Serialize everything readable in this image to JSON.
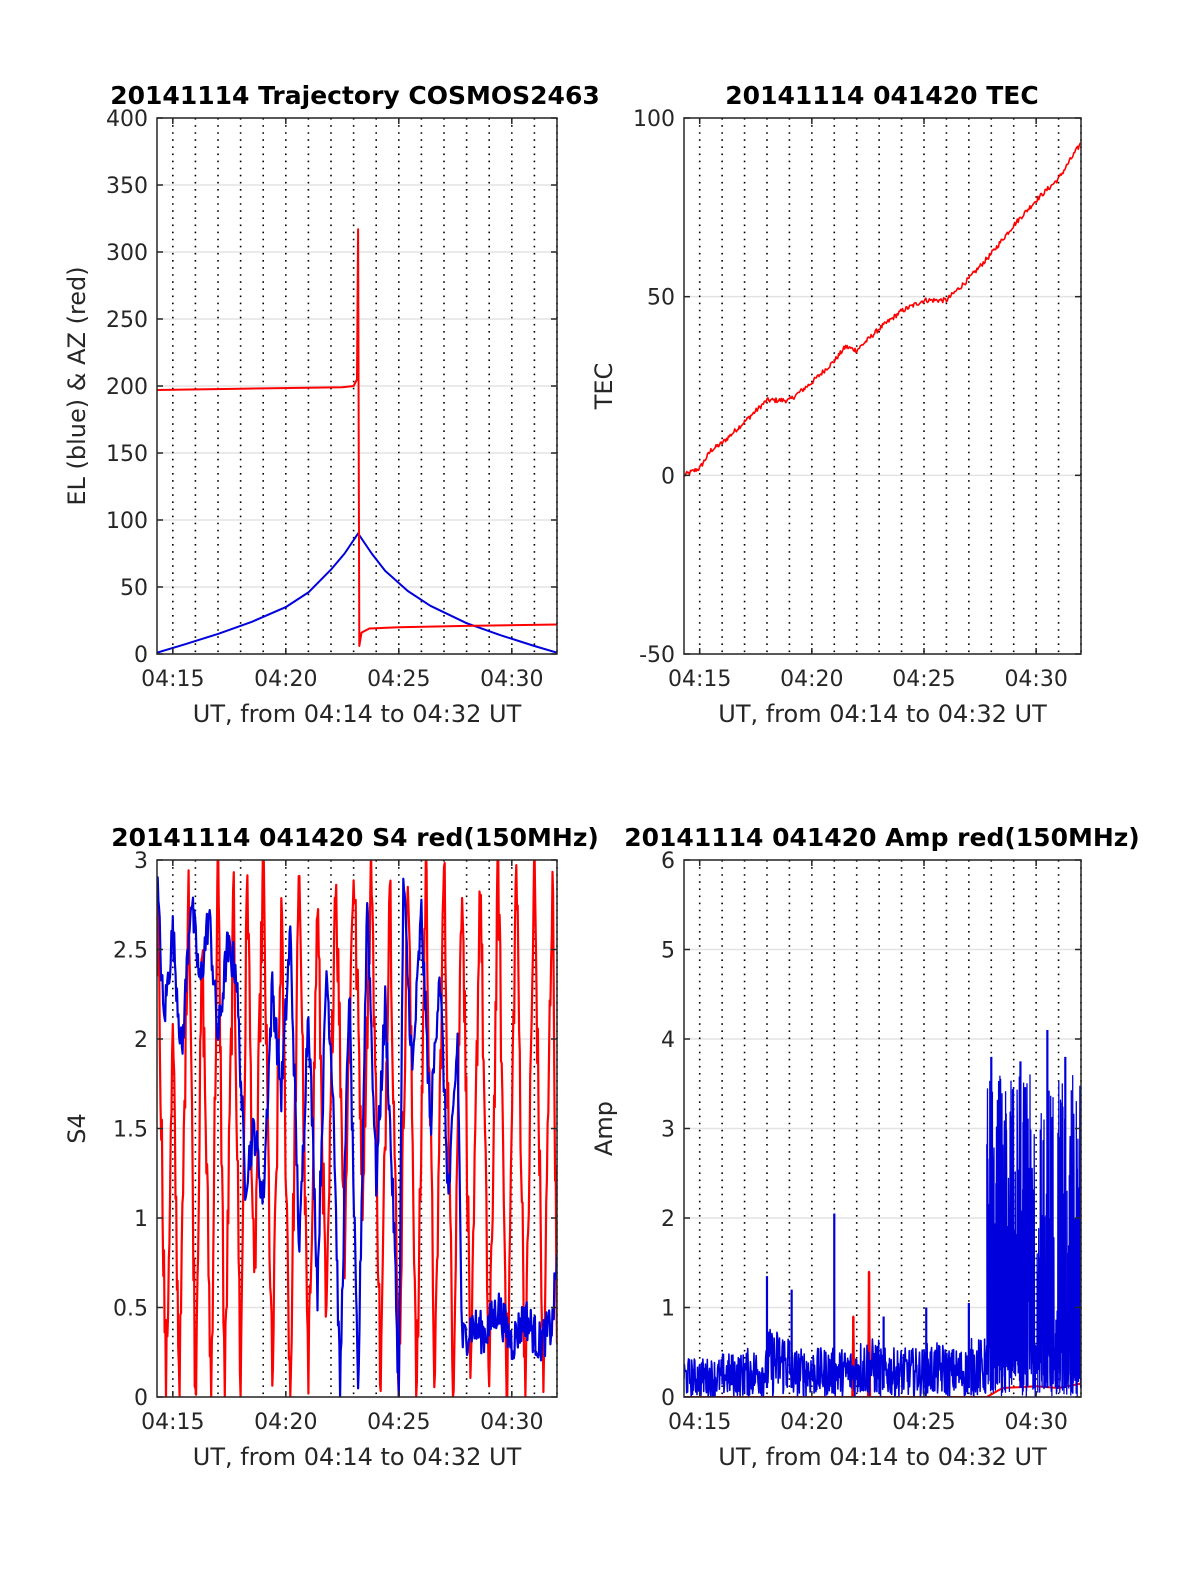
{
  "figure": {
    "background": "#ffffff",
    "series_colors": {
      "red": "#ff0000",
      "blue": "#0000dd"
    },
    "grid": "vertical dotted every minute, horizontal light gray at y ticks"
  },
  "chart_data": [
    {
      "type": "line",
      "title": "20141114 Trajectory COSMOS2463",
      "xlabel": "UT, from 04:14 to 04:32 UT",
      "ylabel": "EL (blue) & AZ (red)",
      "xlim_minutes": [
        14.3,
        32.0
      ],
      "ylim": [
        0,
        400
      ],
      "yticks": [
        0,
        50,
        100,
        150,
        200,
        250,
        300,
        350,
        400
      ],
      "xticks": [
        "04:15",
        "04:20",
        "04:25",
        "04:30"
      ],
      "series": [
        {
          "color": "blue",
          "x_minutes": [
            14.3,
            15.5,
            17,
            18.5,
            20,
            21,
            22,
            22.6,
            23.2,
            23.8,
            24.4,
            25.4,
            26.4,
            28,
            29.5,
            31,
            32
          ],
          "y": [
            1,
            7,
            15,
            24,
            35,
            46,
            63,
            75,
            90,
            75,
            62,
            47,
            36,
            23,
            14,
            6,
            1
          ]
        },
        {
          "color": "red",
          "x_minutes": [
            14.3,
            18,
            22.5,
            23.0,
            23.15,
            23.2,
            23.25,
            23.35,
            23.7,
            25,
            28,
            32
          ],
          "y": [
            197,
            198,
            199,
            200,
            205,
            317,
            6,
            16,
            19,
            20,
            21,
            22
          ]
        }
      ]
    },
    {
      "type": "line",
      "title": "20141114 041420 TEC",
      "xlabel": "UT, from 04:14 to 04:32 UT",
      "ylabel": "TEC",
      "xlim_minutes": [
        14.3,
        32.0
      ],
      "ylim": [
        -50,
        100
      ],
      "yticks": [
        -50,
        0,
        50,
        100
      ],
      "xticks": [
        "04:15",
        "04:20",
        "04:25",
        "04:30"
      ],
      "series": [
        {
          "color": "red",
          "x_minutes": [
            14.3,
            15,
            15.5,
            16,
            17,
            18,
            19,
            20,
            21,
            21.5,
            22,
            23,
            24,
            25,
            26,
            27,
            28,
            29,
            30,
            31,
            32
          ],
          "y": [
            0,
            2,
            7,
            9,
            15,
            21,
            21,
            26,
            32,
            36,
            35,
            41,
            46,
            49,
            49,
            55,
            62,
            70,
            77,
            83,
            93
          ]
        }
      ]
    },
    {
      "type": "line",
      "title": "20141114 041420 S4 red(150MHz)",
      "xlabel": "UT, from 04:14 to 04:32 UT",
      "ylabel": "S4",
      "xlim_minutes": [
        14.3,
        32.0
      ],
      "ylim": [
        0,
        3
      ],
      "yticks": [
        0,
        0.5,
        1,
        1.5,
        2,
        2.5,
        3
      ],
      "xticks": [
        "04:15",
        "04:20",
        "04:25",
        "04:30"
      ],
      "series": [
        {
          "color": "red",
          "x_minutes": [
            14.3,
            14.7,
            15.0,
            15.3,
            15.7,
            16.0,
            16.3,
            16.7,
            17.0,
            17.3,
            17.7,
            18.0,
            18.3,
            18.6,
            19.0,
            19.4,
            19.8,
            20.2,
            20.6,
            21.0,
            21.4,
            21.8,
            22.2,
            22.6,
            23.0,
            23.4,
            23.8,
            24.2,
            24.6,
            25.0,
            25.4,
            25.8,
            26.2,
            26.6,
            27.0,
            27.4,
            27.8,
            28.2,
            28.6,
            29.0,
            29.4,
            29.8,
            30.2,
            30.6,
            31.0,
            31.4,
            31.8,
            32.0
          ],
          "y": [
            3,
            0,
            2,
            0,
            3,
            0,
            2.5,
            0,
            3,
            0,
            2.8,
            0,
            3,
            0.5,
            3,
            0,
            2.7,
            0,
            3,
            0,
            2.8,
            0.3,
            3,
            0.9,
            3,
            1.2,
            3,
            0,
            3,
            0,
            3,
            0,
            3,
            0,
            3,
            0,
            3,
            0,
            3,
            0,
            3,
            0,
            3,
            0,
            3,
            0,
            3,
            0.3
          ]
        },
        {
          "color": "blue",
          "x_minutes": [
            14.3,
            14.6,
            15.0,
            15.4,
            15.8,
            16.2,
            16.6,
            17.0,
            17.4,
            17.8,
            18.2,
            18.6,
            19.0,
            19.4,
            19.8,
            20.2,
            20.6,
            21.0,
            21.4,
            21.8,
            22.1,
            22.4,
            22.8,
            23.2,
            23.6,
            24.0,
            24.4,
            24.8,
            25.0,
            25.2,
            25.6,
            26.0,
            26.4,
            26.8,
            27.2,
            27.6,
            27.8,
            28.2,
            28.8,
            29.4,
            30.0,
            30.6,
            31.2,
            31.8,
            32.0
          ],
          "y": [
            2.9,
            2.1,
            2.6,
            1.9,
            2.8,
            2.3,
            2.7,
            2.0,
            2.5,
            2.4,
            1.2,
            1.5,
            1.1,
            2.3,
            1.7,
            2.6,
            0.8,
            2.2,
            0.6,
            2.4,
            1.7,
            0.0,
            2.3,
            0.0,
            2.8,
            1.2,
            2.2,
            0.9,
            0.0,
            2.9,
            1.8,
            2.7,
            1.5,
            2.4,
            1.1,
            2.0,
            0.3,
            0.4,
            0.35,
            0.5,
            0.3,
            0.45,
            0.3,
            0.4,
            0.8
          ]
        }
      ]
    },
    {
      "type": "line",
      "title": "20141114 041420 Amp red(150MHz)",
      "xlabel": "UT, from 04:14 to 04:32 UT",
      "ylabel": "Amp",
      "xlim_minutes": [
        14.3,
        32.0
      ],
      "ylim": [
        0,
        6
      ],
      "yticks": [
        0,
        1,
        2,
        3,
        4,
        5,
        6
      ],
      "xticks": [
        "04:15",
        "04:20",
        "04:25",
        "04:30"
      ],
      "series": [
        {
          "color": "red",
          "x_minutes": [
            14.3,
            21.8,
            21.85,
            21.9,
            22.5,
            22.55,
            22.6,
            27.8,
            28.5,
            30.0,
            31.0,
            32.0
          ],
          "y": [
            0,
            0,
            0.9,
            0,
            0,
            1.4,
            0,
            0,
            0.1,
            0.12,
            0.1,
            0.15
          ],
          "peaks": [
            {
              "x_minute": 21.85,
              "y": 0.9
            },
            {
              "x_minute": 22.55,
              "y": 1.4
            }
          ]
        },
        {
          "color": "blue",
          "baseline_x_minutes": [
            14.3,
            16,
            17,
            18,
            19,
            20,
            21,
            22,
            23,
            24,
            25,
            26,
            27,
            27.8
          ],
          "baseline_y": [
            0.4,
            0.45,
            0.5,
            0.7,
            0.5,
            0.5,
            0.5,
            0.6,
            0.5,
            0.5,
            0.55,
            0.5,
            0.6,
            0.5
          ],
          "spikes": [
            {
              "x_minute": 18.0,
              "y": 1.35
            },
            {
              "x_minute": 19.1,
              "y": 1.2
            },
            {
              "x_minute": 21.0,
              "y": 2.05
            },
            {
              "x_minute": 23.2,
              "y": 0.9
            },
            {
              "x_minute": 25.1,
              "y": 1.0
            },
            {
              "x_minute": 27.0,
              "y": 1.05
            },
            {
              "x_minute": 28.0,
              "y": 3.8
            },
            {
              "x_minute": 29.3,
              "y": 3.75
            },
            {
              "x_minute": 30.5,
              "y": 4.1
            },
            {
              "x_minute": 31.3,
              "y": 3.8
            }
          ],
          "dense_region_x_minutes": [
            27.8,
            32.0
          ],
          "dense_region_y_range": [
            0.3,
            3.6
          ]
        }
      ]
    }
  ]
}
